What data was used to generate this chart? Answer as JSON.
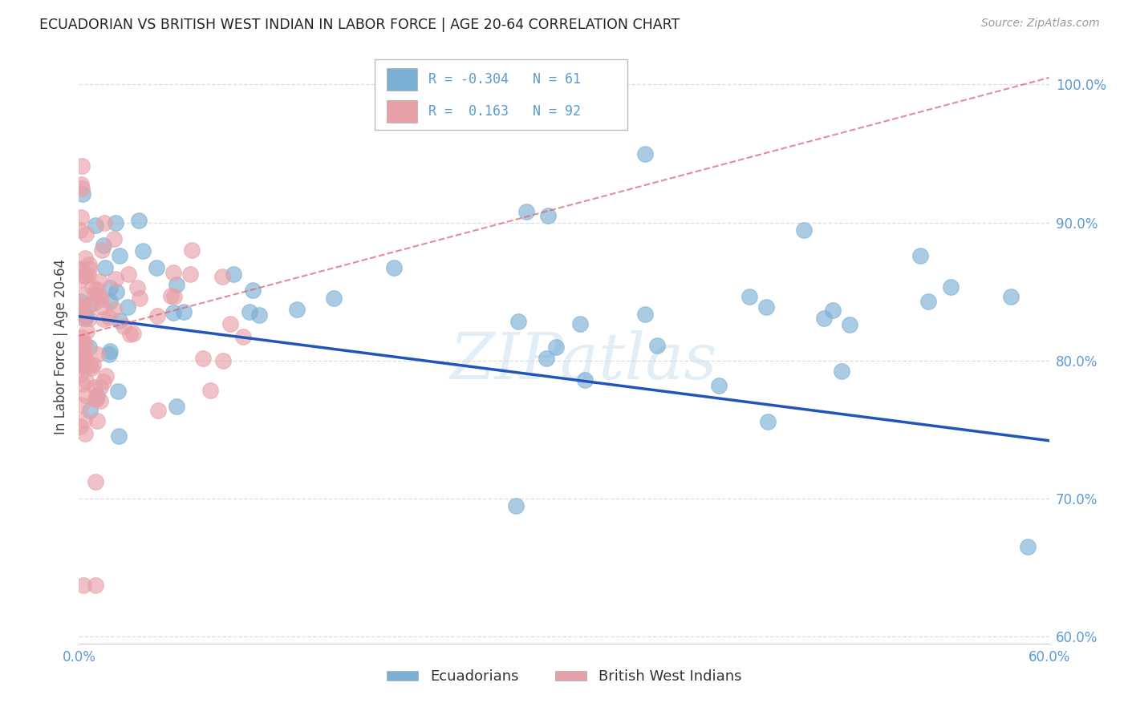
{
  "title": "ECUADORIAN VS BRITISH WEST INDIAN IN LABOR FORCE | AGE 20-64 CORRELATION CHART",
  "source": "Source: ZipAtlas.com",
  "ylabel": "In Labor Force | Age 20-64",
  "xlim": [
    0.0,
    0.6
  ],
  "ylim": [
    0.595,
    1.025
  ],
  "yticks": [
    0.6,
    0.7,
    0.8,
    0.9,
    1.0
  ],
  "xticks": [
    0.0,
    0.1,
    0.2,
    0.3,
    0.4,
    0.5,
    0.6
  ],
  "xtick_labels": [
    "0.0%",
    "",
    "",
    "",
    "",
    "",
    "60.0%"
  ],
  "ytick_labels": [
    "60.0%",
    "70.0%",
    "80.0%",
    "90.0%",
    "100.0%"
  ],
  "blue_color": "#7bafd4",
  "pink_color": "#e8a0a8",
  "blue_line_color": "#2255bb",
  "pink_line_color": "#dd6677",
  "R_blue": -0.304,
  "N_blue": 61,
  "R_pink": 0.163,
  "N_pink": 92,
  "legend_labels": [
    "Ecuadorians",
    "British West Indians"
  ],
  "watermark": "ZIPatlas",
  "grid_color": "#dddddd",
  "background_color": "#ffffff",
  "tick_color": "#5b9bd5",
  "blue_line_y0": 0.832,
  "blue_line_y1": 0.742,
  "pink_line_y0": 0.818,
  "pink_line_y1": 1.005
}
